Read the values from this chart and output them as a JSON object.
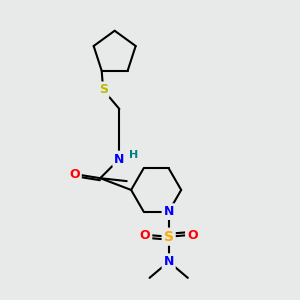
{
  "bg_color": "#e8eaea",
  "bond_color": "#000000",
  "bond_width": 1.5,
  "atom_colors": {
    "N": "#0000ff",
    "O": "#ff0000",
    "S_thio": "#bbbb00",
    "S_sulfonyl": "#ffaa00",
    "H": "#008080",
    "C": "#000000"
  },
  "font_size_atom": 8.5,
  "font_size_h": 8
}
